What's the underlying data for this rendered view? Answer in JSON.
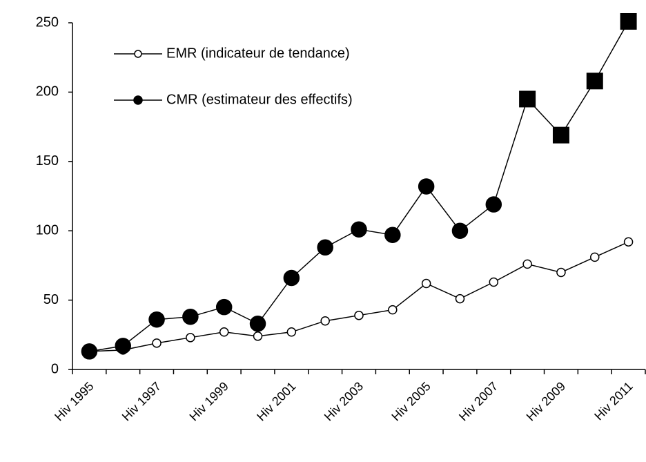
{
  "chart_data": {
    "type": "line",
    "categories": [
      "Hiv 1995",
      null,
      "Hiv 1997",
      null,
      "Hiv 1999",
      null,
      "Hiv 2001",
      null,
      "Hiv 2003",
      null,
      "Hiv 2005",
      null,
      "Hiv 2007",
      null,
      "Hiv 2009",
      null,
      "Hiv 2011"
    ],
    "series": [
      {
        "name": "EMR (indicateur de tendance)",
        "color": "#000000",
        "marker": "open-circle",
        "values": [
          13,
          14,
          19,
          23,
          27,
          24,
          27,
          35,
          39,
          43,
          62,
          51,
          63,
          76,
          70,
          81,
          92
        ]
      },
      {
        "name": "CMR (estimateur des effectifs)",
        "color": "#000000",
        "marker": "filled-circle",
        "markers": [
          "circle",
          "circle",
          "circle",
          "circle",
          "circle",
          "circle",
          "circle",
          "circle",
          "circle",
          "circle",
          "circle",
          "circle",
          "circle",
          "square",
          "square",
          "square",
          "square"
        ],
        "values": [
          13,
          17,
          36,
          38,
          45,
          33,
          66,
          88,
          101,
          97,
          132,
          100,
          119,
          195,
          169,
          208,
          251
        ]
      }
    ],
    "ylim": [
      0,
      250
    ],
    "yticks": [
      0,
      50,
      100,
      150,
      200,
      250
    ],
    "grid": false,
    "legend": "top-left"
  }
}
